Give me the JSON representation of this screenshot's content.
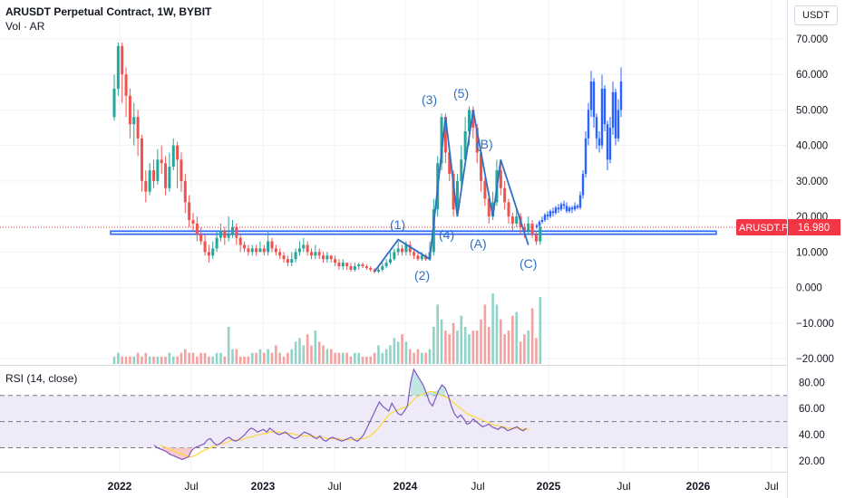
{
  "header": {
    "title": "ARUSDT Perpetual Contract, 1W, BYBIT",
    "volume_label": "Vol · AR",
    "currency": "USDT"
  },
  "rsi_label": "RSI (14, close)",
  "price_badge": {
    "symbol": "ARUSDT.P",
    "value": "16.980",
    "color": "#f23645"
  },
  "colors": {
    "up": "#26a69a",
    "down": "#ef5350",
    "projection": "#2962ff",
    "wave": "#2f6fc4",
    "rsi": "#7e57c2",
    "rsi_ma": "#fdd835",
    "band": "#efeaf8"
  },
  "chart_data": [
    {
      "type": "candlestick",
      "y_ticks": [
        "70.000",
        "60.000",
        "50.000",
        "40.000",
        "30.000",
        "20.000",
        "10.000",
        "0.000",
        "−10.000",
        "−20.000"
      ],
      "x_ticks": [
        "2022",
        "Jul",
        "2023",
        "Jul",
        "2024",
        "Jul",
        "2025",
        "Jul",
        "2026",
        "Jul"
      ],
      "ylim": [
        -20,
        73
      ],
      "last_price": 16.98,
      "support_zone": [
        15.0,
        15.9
      ],
      "candles": [
        [
          48,
          56,
          60,
          47
        ],
        [
          56,
          68,
          69,
          54
        ],
        [
          68,
          60,
          69,
          52
        ],
        [
          60,
          54,
          62,
          48
        ],
        [
          54,
          46,
          56,
          42
        ],
        [
          46,
          48,
          52,
          40
        ],
        [
          48,
          42,
          50,
          37
        ],
        [
          42,
          30,
          43,
          27
        ],
        [
          30,
          27,
          33,
          24
        ],
        [
          27,
          33,
          35,
          26
        ],
        [
          33,
          30,
          36,
          28
        ],
        [
          30,
          36,
          39,
          29
        ],
        [
          36,
          35,
          40,
          32
        ],
        [
          35,
          28,
          37,
          26
        ],
        [
          28,
          34,
          38,
          27
        ],
        [
          34,
          40,
          42,
          33
        ],
        [
          40,
          36,
          41,
          28
        ],
        [
          36,
          30,
          38,
          27
        ],
        [
          30,
          24,
          32,
          21
        ],
        [
          24,
          19,
          26,
          17
        ],
        [
          19,
          18,
          21,
          16
        ],
        [
          18,
          15,
          20,
          13
        ],
        [
          15,
          13,
          17,
          12
        ],
        [
          13,
          10,
          15,
          9
        ],
        [
          10,
          9,
          12,
          7
        ],
        [
          9,
          11,
          13,
          8
        ],
        [
          11,
          14,
          16,
          10
        ],
        [
          14,
          16,
          18,
          13
        ],
        [
          16,
          14,
          17,
          12
        ],
        [
          14,
          15,
          20,
          13
        ],
        [
          15,
          17,
          19,
          14
        ],
        [
          17,
          14,
          18,
          12
        ],
        [
          14,
          12,
          15,
          10
        ],
        [
          12,
          11,
          13,
          10
        ],
        [
          11,
          10,
          12,
          9
        ],
        [
          10,
          11,
          12,
          9
        ],
        [
          11,
          10,
          12,
          9
        ],
        [
          10,
          11,
          13,
          10
        ],
        [
          11,
          10,
          12,
          9
        ],
        [
          10,
          13,
          16,
          9
        ],
        [
          13,
          11,
          14,
          10
        ],
        [
          11,
          10,
          12,
          9
        ],
        [
          10,
          9,
          11,
          8
        ],
        [
          9,
          8,
          10,
          7
        ],
        [
          8,
          7,
          9,
          6
        ],
        [
          7,
          8,
          10,
          6
        ],
        [
          8,
          10,
          11,
          7
        ],
        [
          10,
          11,
          13,
          9
        ],
        [
          11,
          12,
          14,
          10
        ],
        [
          12,
          10,
          13,
          9
        ],
        [
          10,
          9,
          11,
          8
        ],
        [
          9,
          10,
          12,
          8
        ],
        [
          10,
          9,
          11,
          8
        ],
        [
          9,
          8,
          10,
          7
        ],
        [
          8,
          9,
          10,
          7
        ],
        [
          9,
          8,
          9,
          7
        ],
        [
          8,
          7,
          9,
          6
        ],
        [
          7,
          6,
          8,
          5
        ],
        [
          6,
          7,
          8,
          5
        ],
        [
          7,
          6,
          7,
          5
        ],
        [
          6,
          5,
          7,
          4.5
        ],
        [
          5,
          6,
          7,
          4.5
        ],
        [
          6,
          6.5,
          7,
          5
        ],
        [
          6.5,
          6,
          7,
          5.5
        ],
        [
          6,
          5.5,
          6.5,
          5
        ],
        [
          5.5,
          5,
          6,
          4.5
        ],
        [
          5,
          4.5,
          5.5,
          4
        ],
        [
          4.5,
          5,
          6,
          4
        ],
        [
          5,
          6,
          7,
          4.5
        ],
        [
          6,
          7,
          8,
          5.5
        ],
        [
          7,
          8,
          10,
          6.5
        ],
        [
          8,
          10,
          11,
          7.5
        ],
        [
          10,
          11,
          13,
          9
        ],
        [
          11,
          10,
          12,
          9
        ],
        [
          10,
          12,
          13,
          9
        ],
        [
          12,
          10,
          13,
          9
        ],
        [
          10,
          9,
          11,
          8
        ],
        [
          9,
          8,
          10,
          7.5
        ],
        [
          8,
          9,
          10,
          7.5
        ],
        [
          9,
          8,
          9.5,
          7.5
        ],
        [
          8,
          10,
          13,
          7.5
        ],
        [
          10,
          22,
          25,
          9
        ],
        [
          22,
          35,
          37,
          20
        ],
        [
          35,
          48,
          49,
          33
        ],
        [
          48,
          38,
          49,
          35
        ],
        [
          38,
          32,
          40,
          30
        ],
        [
          32,
          22,
          33,
          20
        ],
        [
          22,
          30,
          32,
          21
        ],
        [
          30,
          36,
          40,
          28
        ],
        [
          36,
          44,
          48,
          35
        ],
        [
          44,
          50,
          51,
          40
        ],
        [
          50,
          45,
          51,
          42
        ],
        [
          45,
          38,
          46,
          35
        ],
        [
          38,
          30,
          39,
          27
        ],
        [
          30,
          25,
          31,
          23
        ],
        [
          25,
          20,
          27,
          18
        ],
        [
          20,
          24,
          27,
          19
        ],
        [
          24,
          33,
          36,
          23
        ],
        [
          33,
          28,
          35,
          26
        ],
        [
          28,
          24,
          30,
          22
        ],
        [
          24,
          20,
          25,
          18
        ],
        [
          20,
          18,
          21,
          16
        ],
        [
          18,
          20,
          22,
          17
        ],
        [
          20,
          17,
          21,
          15
        ],
        [
          17,
          16,
          18,
          14
        ],
        [
          16,
          18,
          20,
          15
        ],
        [
          18,
          15,
          19,
          14
        ],
        [
          15,
          13,
          16,
          12
        ],
        [
          13,
          17,
          18,
          12
        ]
      ],
      "projection": [
        [
          17,
          17.5,
          18,
          16.5
        ],
        [
          17.5,
          18.5,
          19,
          17
        ],
        [
          18.5,
          19,
          20,
          18
        ],
        [
          19,
          20.5,
          21,
          18.5
        ],
        [
          20.5,
          20,
          21.5,
          19
        ],
        [
          20,
          21.5,
          22,
          19.5
        ],
        [
          21.5,
          21,
          22.5,
          20
        ],
        [
          21,
          22.5,
          23,
          20.5
        ],
        [
          22.5,
          22,
          23.5,
          21
        ],
        [
          22,
          23.5,
          24,
          21.5
        ],
        [
          23.5,
          23,
          24.5,
          22
        ],
        [
          23,
          21.5,
          24,
          21
        ],
        [
          21.5,
          22.5,
          23,
          21
        ],
        [
          22.5,
          22,
          23,
          21
        ],
        [
          22,
          23,
          24,
          21.5
        ],
        [
          23,
          22.5,
          23.5,
          22
        ],
        [
          22.5,
          26,
          27,
          22
        ],
        [
          26,
          32,
          33,
          25
        ],
        [
          32,
          42,
          44,
          31
        ],
        [
          42,
          50,
          52,
          40
        ],
        [
          50,
          58,
          61,
          48
        ],
        [
          58,
          48,
          59,
          45
        ],
        [
          48,
          42,
          49,
          39
        ],
        [
          42,
          40,
          44,
          38
        ],
        [
          40,
          56,
          60,
          39
        ],
        [
          56,
          46,
          57,
          44
        ],
        [
          46,
          36,
          47,
          33
        ],
        [
          36,
          45,
          48,
          35
        ],
        [
          45,
          55,
          58,
          43
        ],
        [
          55,
          42,
          56,
          40
        ],
        [
          42,
          50,
          53,
          41
        ],
        [
          50,
          58,
          62,
          48
        ]
      ],
      "volume": [
        0.2,
        0.3,
        0.2,
        0.2,
        0.2,
        0.2,
        0.3,
        0.2,
        0.3,
        0.2,
        0.2,
        0.2,
        0.2,
        0.2,
        0.3,
        0.2,
        0.2,
        0.3,
        0.4,
        0.3,
        0.3,
        0.2,
        0.3,
        0.3,
        0.2,
        0.2,
        0.3,
        0.3,
        0.2,
        1.0,
        0.4,
        0.4,
        0.2,
        0.2,
        0.2,
        0.3,
        0.3,
        0.4,
        0.3,
        0.4,
        0.3,
        0.5,
        0.3,
        0.2,
        0.3,
        0.4,
        0.6,
        0.7,
        0.5,
        0.8,
        0.5,
        0.9,
        0.6,
        0.5,
        0.4,
        0.4,
        0.3,
        0.3,
        0.3,
        0.3,
        0.2,
        0.3,
        0.3,
        0.2,
        0.2,
        0.2,
        0.3,
        0.5,
        0.3,
        0.4,
        0.5,
        0.7,
        0.6,
        0.8,
        0.6,
        0.4,
        0.3,
        0.4,
        0.3,
        0.3,
        0.4,
        1.0,
        1.6,
        1.2,
        0.9,
        0.8,
        1.1,
        0.9,
        1.3,
        1.0,
        0.8,
        0.9,
        0.9,
        1.2,
        1.6,
        1.0,
        1.9,
        1.6,
        1.2,
        0.8,
        0.9,
        1.3,
        1.4,
        0.6,
        0.8,
        0.9,
        1.5,
        0.7,
        1.8
      ]
    },
    {
      "type": "line",
      "title": "RSI (14, close)",
      "ylim": [
        13,
        92
      ],
      "y_ticks": [
        "80.00",
        "60.00",
        "40.00",
        "20.00"
      ],
      "bands": [
        30,
        50,
        70
      ],
      "rsi": [
        32,
        30,
        29,
        28,
        27,
        25,
        24,
        23,
        22,
        21,
        22,
        23,
        28,
        30,
        31,
        32,
        33,
        36,
        37,
        34,
        32,
        33,
        35,
        37,
        38,
        36,
        35,
        36,
        38,
        40,
        43,
        45,
        44,
        42,
        43,
        44,
        42,
        45,
        43,
        41,
        40,
        41,
        42,
        40,
        38,
        37,
        38,
        40,
        42,
        41,
        40,
        38,
        37,
        39,
        36,
        35,
        37,
        38,
        37,
        36,
        35,
        36,
        37,
        38,
        36,
        35,
        37,
        40,
        45,
        50,
        55,
        60,
        65,
        62,
        60,
        58,
        64,
        60,
        56,
        55,
        58,
        62,
        80,
        90,
        86,
        82,
        78,
        72,
        65,
        62,
        68,
        74,
        78,
        76,
        70,
        62,
        56,
        53,
        55,
        52,
        48,
        49,
        52,
        50,
        48,
        46,
        47,
        48,
        46,
        45,
        44,
        46,
        45,
        43,
        44,
        45,
        46,
        44,
        43,
        45
      ],
      "rsi_ma": [
        32,
        31,
        30,
        29,
        28,
        27,
        26,
        25,
        24,
        23,
        23,
        24,
        25,
        27,
        28,
        29,
        30,
        31,
        32,
        33,
        33,
        34,
        35,
        36,
        36,
        36,
        36,
        37,
        38,
        38,
        39,
        40,
        40,
        41,
        41,
        42,
        42,
        42,
        42,
        41,
        41,
        41,
        41,
        40,
        40,
        39,
        39,
        39,
        39,
        39,
        38,
        38,
        38,
        37,
        37,
        37,
        37,
        37,
        36,
        36,
        36,
        36,
        36,
        37,
        37,
        37,
        38,
        39,
        41,
        43,
        46,
        49,
        52,
        55,
        57,
        58,
        59,
        60,
        61,
        62,
        64,
        67,
        69,
        70,
        71,
        72,
        73,
        73,
        72,
        71,
        70,
        69,
        68,
        66,
        64,
        62,
        60,
        58,
        56,
        55,
        54,
        53,
        52,
        51,
        50,
        49,
        48,
        47,
        47,
        46,
        46,
        45,
        45,
        45,
        45,
        45,
        44,
        44,
        44
      ]
    }
  ],
  "annotations": {
    "wave_labels": [
      "(1)",
      "(2)",
      "(3)",
      "(4)",
      "(5)",
      "(A)",
      "(B)",
      "(C)"
    ]
  }
}
